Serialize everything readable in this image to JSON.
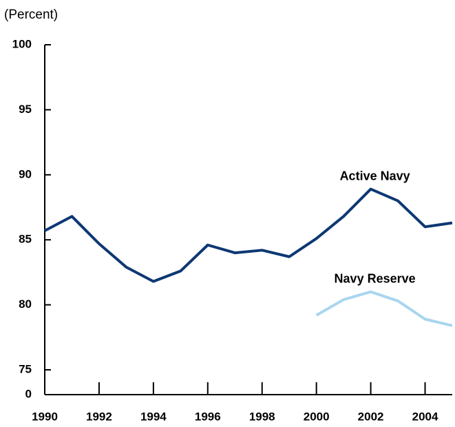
{
  "chart_data": {
    "type": "line",
    "subtitle": "(Percent)",
    "x": [
      1990,
      1991,
      1992,
      1993,
      1994,
      1995,
      1996,
      1997,
      1998,
      1999,
      2000,
      2001,
      2002,
      2003,
      2004,
      2005
    ],
    "series": [
      {
        "name": "Active Navy",
        "color": "#0d3873",
        "values": [
          85.7,
          86.8,
          84.7,
          82.9,
          81.8,
          82.6,
          84.6,
          84.0,
          84.2,
          83.7,
          85.1,
          86.8,
          88.9,
          88.0,
          86.0,
          86.3
        ]
      },
      {
        "name": "Navy Reserve",
        "color": "#a9d5ef",
        "values": [
          null,
          null,
          null,
          null,
          null,
          null,
          null,
          null,
          null,
          null,
          79.2,
          80.4,
          81.0,
          80.3,
          78.9,
          78.4
        ]
      }
    ],
    "xlim": [
      1990,
      2005
    ],
    "xticks": [
      1990,
      1992,
      1994,
      1996,
      1998,
      2000,
      2002,
      2004
    ],
    "ylim": [
      75,
      100
    ],
    "yticks": [
      75,
      80,
      85,
      90,
      95,
      100
    ],
    "y_break_tick": 0
  }
}
